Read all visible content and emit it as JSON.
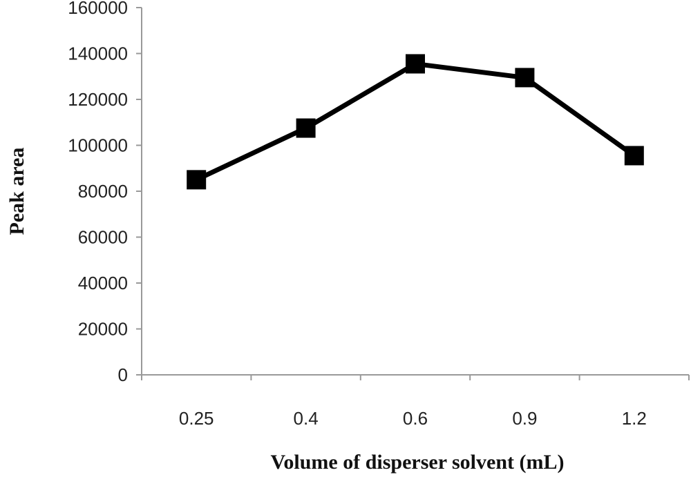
{
  "chart_data": {
    "type": "line",
    "title": "",
    "xlabel": "Volume of disperser solvent (mL)",
    "ylabel": "Peak area",
    "categories": [
      "0.25",
      "0.4",
      "0.6",
      "0.9",
      "1.2"
    ],
    "series": [
      {
        "values": [
          85000,
          107500,
          135500,
          129500,
          95500
        ],
        "color": "#000000",
        "marker": "square"
      }
    ],
    "ylim": [
      0,
      160000
    ],
    "yticks": [
      0,
      20000,
      40000,
      60000,
      80000,
      100000,
      120000,
      140000,
      160000
    ],
    "ytick_labels": [
      "0",
      "20000",
      "40000",
      "60000",
      "80000",
      "100000",
      "120000",
      "140000",
      "160000"
    ],
    "grid": false,
    "legend": "none"
  }
}
